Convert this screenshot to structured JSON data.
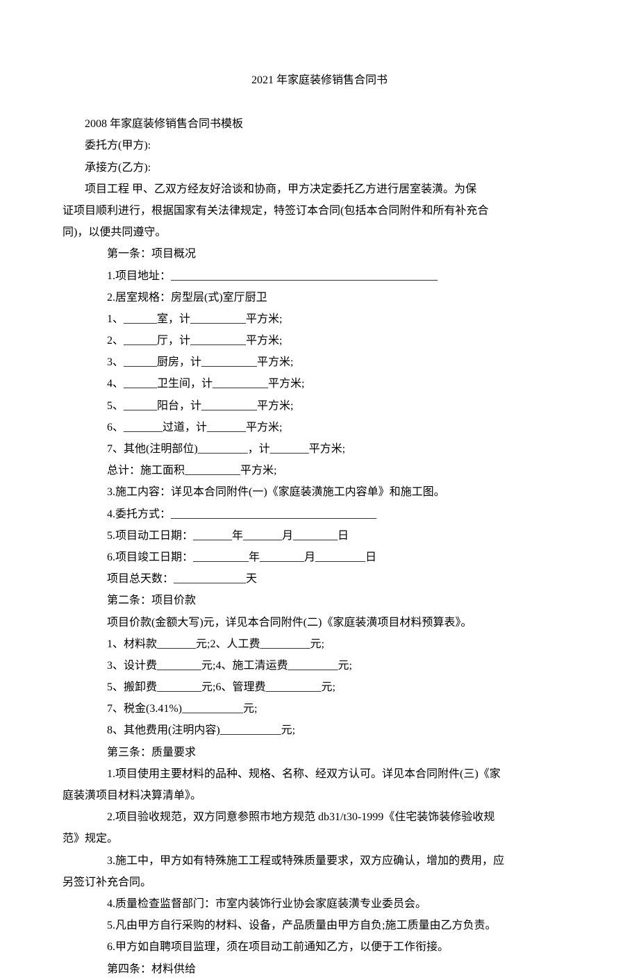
{
  "title": "2021 年家庭装修销售合同书",
  "lines": [
    {
      "text": "2008 年家庭装修销售合同书模板",
      "indent": "body-line"
    },
    {
      "text": "委托方(甲方):",
      "indent": "body-line"
    },
    {
      "text": "承接方(乙方):",
      "indent": "body-line"
    },
    {
      "text": "项目工程 甲、乙双方经友好洽谈和协商，甲方决定委托乙方进行居室装潢。为保",
      "indent": "body-line"
    },
    {
      "text": "证项目顺利进行，根据国家有关法律规定，特签订本合同(包括本合同附件和所有补充合",
      "indent": "body-line-noindent"
    },
    {
      "text": "同)，以便共同遵守。",
      "indent": "body-line-noindent"
    },
    {
      "text": "第一条：项目概况",
      "indent": "indent-1"
    },
    {
      "text": "1.项目地址：________________________________________________",
      "indent": "indent-1"
    },
    {
      "text": "2.居室规格：房型层(式)室厅厨卫",
      "indent": "indent-1"
    },
    {
      "text": "1、______室，计__________平方米;",
      "indent": "indent-1"
    },
    {
      "text": "2、______厅，计__________平方米;",
      "indent": "indent-1"
    },
    {
      "text": "3、______厨房，计__________平方米;",
      "indent": "indent-1"
    },
    {
      "text": "4、______卫生间，计__________平方米;",
      "indent": "indent-1"
    },
    {
      "text": "5、______阳台，计__________平方米;",
      "indent": "indent-1"
    },
    {
      "text": "6、_______过道，计_______平方米;",
      "indent": "indent-1"
    },
    {
      "text": "7、其他(注明部位)_________，计_______平方米;",
      "indent": "indent-1"
    },
    {
      "text": "总计：施工面积__________平方米;",
      "indent": "indent-1"
    },
    {
      "text": "3.施工内容：详见本合同附件(一)《家庭装潢施工内容单》和施工图。",
      "indent": "indent-1"
    },
    {
      "text": "4.委托方式：_____________________________________",
      "indent": "indent-1"
    },
    {
      "text": "5.项目动工日期：_______年_______月________日",
      "indent": "indent-1"
    },
    {
      "text": "6.项目竣工日期：__________年________月_________日",
      "indent": "indent-1"
    },
    {
      "text": "项目总天数：_____________天",
      "indent": "indent-1"
    },
    {
      "text": "第二条：项目价款",
      "indent": "indent-1"
    },
    {
      "text": "项目价款(金额大写)元，详见本合同附件(二)《家庭装潢项目材料预算表》。",
      "indent": "indent-1"
    },
    {
      "text": "1、材料款_______元;2、人工费_________元;",
      "indent": "indent-1"
    },
    {
      "text": "3、设计费________元;4、施工清运费_________元;",
      "indent": "indent-1"
    },
    {
      "text": "5、搬卸费________元;6、管理费__________元;",
      "indent": "indent-1"
    },
    {
      "text": "7、税金(3.41%)___________元;",
      "indent": "indent-1"
    },
    {
      "text": "8、其他费用(注明内容)___________元;",
      "indent": "indent-1"
    },
    {
      "text": "第三条：质量要求",
      "indent": "indent-1"
    },
    {
      "text": "1.项目使用主要材料的品种、规格、名称、经双方认可。详见本合同附件(三)《家",
      "indent": "indent-1"
    },
    {
      "text": "庭装潢项目材料决算清单》。",
      "indent": "body-line-noindent"
    },
    {
      "text": "2.项目验收规范，双方同意参照市地方规范 db31/t30-1999《住宅装饰装修验收规",
      "indent": "indent-1"
    },
    {
      "text": "范》规定。",
      "indent": "body-line-noindent"
    },
    {
      "text": "3.施工中，甲方如有特殊施工工程或特殊质量要求，双方应确认，增加的费用，应",
      "indent": "indent-1"
    },
    {
      "text": "另签订补充合同。",
      "indent": "body-line-noindent"
    },
    {
      "text": "4.质量检查监督部门：市室内装饰行业协会家庭装潢专业委员会。",
      "indent": "indent-1"
    },
    {
      "text": "5.凡由甲方自行采购的材料、设备，产品质量由甲方自负;施工质量由乙方负责。",
      "indent": "indent-1"
    },
    {
      "text": "6.甲方如自聘项目监理，须在项目动工前通知乙方，以便于工作衔接。",
      "indent": "indent-1"
    },
    {
      "text": "第四条：材料供给",
      "indent": "indent-1"
    }
  ]
}
